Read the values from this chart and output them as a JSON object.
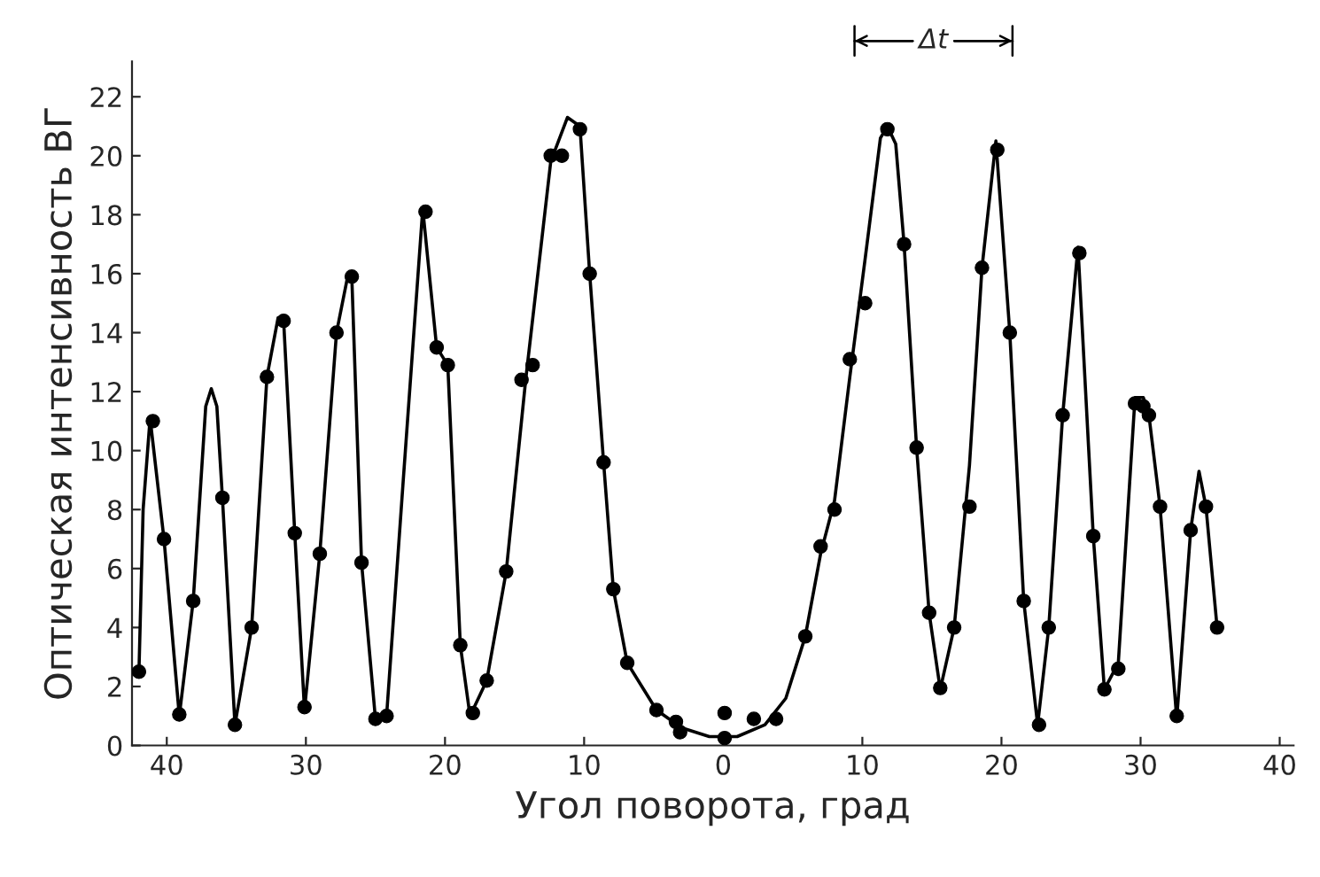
{
  "chart_data": {
    "type": "scatter",
    "xlabel": "Угол поворота, град",
    "ylabel": "Оптическая интенсивность ВГ",
    "xlim": [
      -42.5,
      41
    ],
    "ylim": [
      0,
      23.2
    ],
    "xticks": [
      {
        "value": -40,
        "label": "40"
      },
      {
        "value": -30,
        "label": "30"
      },
      {
        "value": -20,
        "label": "20"
      },
      {
        "value": -10,
        "label": "10"
      },
      0,
      10,
      20,
      30,
      40
    ],
    "yticks": [
      0,
      2,
      4,
      6,
      8,
      10,
      12,
      14,
      16,
      18,
      20,
      22
    ],
    "grid": false,
    "legend": false,
    "annotations": [
      "Δt"
    ],
    "series": [
      {
        "type": "line",
        "color": "#000000",
        "marker": "none",
        "line_style": "solid",
        "x": [
          -42,
          -41.7,
          -41.2,
          -40.2,
          -39.1,
          -38.1,
          -37.2,
          -36.8,
          -36.4,
          -36,
          -35.1,
          -33.9,
          -32.8,
          -32,
          -31.6,
          -30.8,
          -30.1,
          -29,
          -27.8,
          -27,
          -26.7,
          -26,
          -25,
          -24.2,
          -23,
          -21.6,
          -20.6,
          -19.8,
          -18.9,
          -18.2,
          -17,
          -15.6,
          -14.2,
          -12.4,
          -11.2,
          -10.3,
          -9.6,
          -8.6,
          -7.9,
          -6.9,
          -4.8,
          -3,
          -1,
          1,
          3,
          4.5,
          5.9,
          7,
          8,
          9.1,
          10.2,
          11.3,
          11.8,
          12.4,
          13,
          13.9,
          14.8,
          15.6,
          16.6,
          17.7,
          18.6,
          19.6,
          20.6,
          21.6,
          22.6,
          23.4,
          24.4,
          25.5,
          26.6,
          27.4,
          28.4,
          29.6,
          30.2,
          30.6,
          31.4,
          32.6,
          33.6,
          34.2,
          34.7,
          35.5
        ],
        "values": [
          2.5,
          8,
          11.1,
          7,
          1,
          4.9,
          11.5,
          12.1,
          11.5,
          8.4,
          0.7,
          4,
          12.5,
          14.5,
          14.4,
          7.2,
          1.2,
          6.5,
          14,
          15.9,
          15.9,
          6.2,
          0.9,
          1,
          9,
          18.2,
          13.5,
          12.9,
          3.4,
          1,
          2.2,
          5.9,
          12.4,
          19.8,
          21.3,
          21,
          16,
          9.6,
          5.3,
          2.8,
          1.2,
          0.6,
          0.3,
          0.3,
          0.7,
          1.6,
          3.7,
          6.5,
          8.3,
          12.5,
          16.5,
          20.6,
          21,
          20.4,
          17,
          10.1,
          4.5,
          1.9,
          4,
          9.5,
          16.2,
          20.5,
          14,
          4.9,
          0.7,
          4,
          11.2,
          16.9,
          7.1,
          1.9,
          2.8,
          11.8,
          11.8,
          11.2,
          8.1,
          0.9,
          7.3,
          9.3,
          8.1,
          4
        ]
      },
      {
        "color": "#000000",
        "marker": "circle",
        "x": [
          -42,
          -41,
          -40.2,
          -39.1,
          -38.1,
          -36,
          -35.1,
          -33.9,
          -32.8,
          -31.6,
          -30.8,
          -30.1,
          -29,
          -27.8,
          -26.7,
          -26,
          -25,
          -24.2,
          -21.4,
          -20.6,
          -19.8,
          -18.9,
          -18,
          -17,
          -15.6,
          -14.5,
          -13.7,
          -12.4,
          -11.6,
          -10.3,
          -9.6,
          -8.6,
          -7.9,
          -6.9,
          -4.8,
          -3.4,
          -3.1,
          0.1,
          0.1,
          2.2,
          3.8,
          5.9,
          7,
          8,
          9.1,
          10.2,
          11.8,
          13,
          13.9,
          14.8,
          15.6,
          16.6,
          17.7,
          18.6,
          19.7,
          20.6,
          21.6,
          22.7,
          23.4,
          24.4,
          25.6,
          26.6,
          27.4,
          28.4,
          29.6,
          30.2,
          30.6,
          31.4,
          32.6,
          33.6,
          34.7,
          35.5
        ],
        "values": [
          2.5,
          11,
          7,
          1.05,
          4.9,
          8.4,
          0.7,
          4,
          12.5,
          14.4,
          7.2,
          1.3,
          6.5,
          14,
          15.9,
          6.2,
          0.9,
          1,
          18.1,
          13.5,
          12.9,
          3.4,
          1.1,
          2.2,
          5.9,
          12.4,
          12.9,
          20,
          20,
          20.9,
          16,
          9.6,
          5.3,
          2.8,
          1.2,
          0.8,
          0.45,
          1.1,
          0.25,
          0.9,
          0.9,
          3.7,
          6.75,
          8,
          13.1,
          15,
          20.9,
          17,
          10.1,
          4.5,
          1.95,
          4,
          8.1,
          16.2,
          20.2,
          14,
          4.9,
          0.7,
          4,
          11.2,
          16.7,
          7.1,
          1.9,
          2.6,
          11.6,
          11.5,
          11.2,
          8.1,
          1,
          7.3,
          8.1,
          4
        ]
      }
    ]
  }
}
